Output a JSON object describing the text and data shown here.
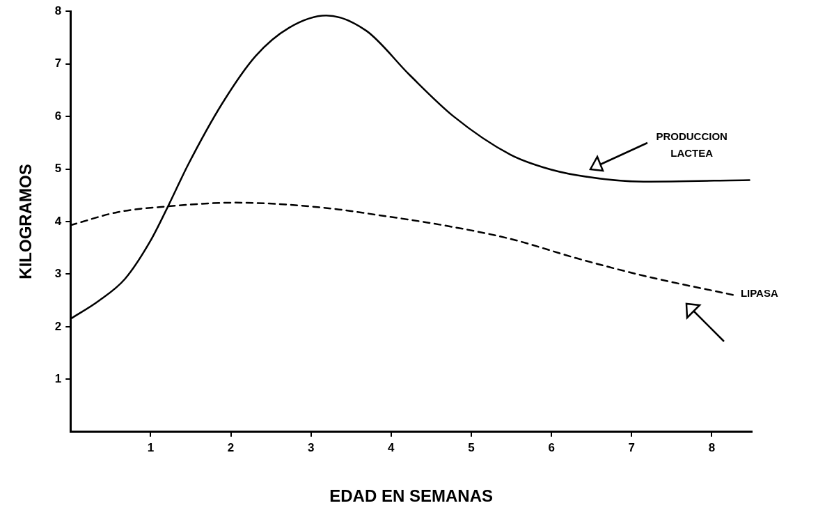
{
  "chart_data": {
    "type": "line",
    "xlabel": "EDAD EN SEMANAS",
    "ylabel": "KILOGRAMOS",
    "xlim": [
      0,
      8.5
    ],
    "ylim": [
      0,
      8
    ],
    "xticks": [
      1,
      2,
      3,
      4,
      5,
      6,
      7,
      8
    ],
    "yticks": [
      1,
      2,
      3,
      4,
      5,
      6,
      7,
      8
    ],
    "grid": false,
    "legend": false,
    "marker": "none",
    "series": [
      {
        "name": "PRODUCCION LACTEA",
        "color": "#000000",
        "line_style": "solid",
        "x": [
          0,
          0.35,
          0.68,
          1,
          1.22,
          1.47,
          1.89,
          2.31,
          2.73,
          3.19,
          3.69,
          4.23,
          4.78,
          5.49,
          5.9,
          6.32,
          7.15,
          8.47
        ],
        "values": [
          2.15,
          2.49,
          2.91,
          3.64,
          4.3,
          5.09,
          6.24,
          7.15,
          7.69,
          7.92,
          7.63,
          6.79,
          6.0,
          5.27,
          5.03,
          4.88,
          4.76,
          4.79
        ]
      },
      {
        "name": "LIPASA",
        "color": "#000000",
        "line_style": "dashed",
        "x": [
          0,
          0.59,
          1.22,
          2.06,
          2.73,
          3.35,
          3.81,
          4.65,
          5.49,
          6.32,
          7.15,
          8.28
        ],
        "values": [
          3.93,
          4.18,
          4.29,
          4.36,
          4.32,
          4.23,
          4.13,
          3.93,
          3.67,
          3.3,
          2.97,
          2.6
        ]
      }
    ]
  }
}
